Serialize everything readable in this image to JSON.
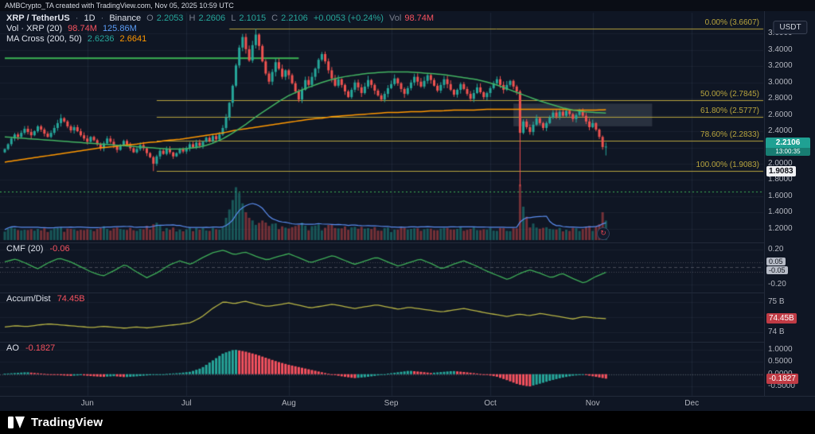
{
  "header": {
    "watermark": "AMBCrypto_TA created with TradingView.com, Nov 05, 2025 10:59 UTC"
  },
  "legend": {
    "symbol": "XRP / TetherUS",
    "sep": "·",
    "timeframe": "1D",
    "exchange": "Binance",
    "ohlc": {
      "o_label": "O",
      "o": "2.2053",
      "h_label": "H",
      "h": "2.2606",
      "l_label": "L",
      "l": "2.1015",
      "c_label": "C",
      "c": "2.2106",
      "change": "+0.0053 (+0.24%)",
      "vol_label": "Vol",
      "vol": "98.74M"
    },
    "volume_row": {
      "title": "Vol · XRP (20)",
      "v1": "98.74M",
      "v2": "125.86M"
    },
    "ma_row": {
      "title": "MA Cross (200, 50)",
      "v1": "2.6236",
      "v2": "2.6641"
    }
  },
  "panes": {
    "cmf": {
      "title": "CMF (20)",
      "value": "-0.06"
    },
    "ad": {
      "title": "Accum/Dist",
      "value": "74.45B"
    },
    "ao": {
      "title": "AO",
      "value": "-0.1827"
    }
  },
  "axis": {
    "currency_button": "USDT",
    "price_badge": {
      "price": "2.2106",
      "countdown": "13:00:35"
    },
    "fib_badge": "1.9083",
    "cmf_badges": {
      "upper": {
        "label": "0.05"
      },
      "lower": {
        "label": "-0.05"
      }
    },
    "ad_badge": "74.45B",
    "ao_badge": "-0.1827",
    "main_ticks": [
      "3.6000",
      "3.4000",
      "3.2000",
      "3.0000",
      "2.8000",
      "2.6000",
      "2.4000",
      "2.2000",
      "2.0000",
      "1.8000",
      "1.6000",
      "1.4000",
      "1.2000"
    ],
    "cmf_ticks": [
      {
        "label": "0.20",
        "value": 0.2
      },
      {
        "label": "-0.20",
        "value": -0.2
      }
    ],
    "ad_ticks": [
      {
        "label": "75 B",
        "value": 75
      },
      {
        "label": "74.5 B",
        "value": 74.5
      },
      {
        "label": "74 B",
        "value": 74
      }
    ],
    "ao_ticks": [
      {
        "label": "1.0000",
        "value": 1
      },
      {
        "label": "0.5000",
        "value": 0.5
      },
      {
        "label": "0.0000",
        "value": 0
      },
      {
        "label": "-0.5000",
        "value": -0.5
      }
    ]
  },
  "footer": {
    "brand": "TradingView"
  },
  "colors": {
    "up": "#26a69a",
    "down": "#ef5350",
    "vol_up": "rgba(38,166,154,0.45)",
    "vol_down": "rgba(239,83,80,0.45)",
    "vol_ma": "#5b8def",
    "ma200": "#ff9800",
    "ma50": "#43b462",
    "cmf": "#3fae58",
    "ad": "#b8b545",
    "ao_up": "#26a69a",
    "ao_down": "#f7525f",
    "fib": "#b9a53e",
    "hline": "#3cb454"
  },
  "chart_data": {
    "type": "candlestick",
    "title": "XRP / TetherUS · 1D · Binance",
    "ylabel": "Price (USDT)",
    "ylim": [
      1.05,
      3.82
    ],
    "first_open": 2.14,
    "closes": [
      2.18,
      2.24,
      2.31,
      2.36,
      2.33,
      2.38,
      2.43,
      2.39,
      2.35,
      2.4,
      2.46,
      2.42,
      2.37,
      2.33,
      2.38,
      2.44,
      2.5,
      2.56,
      2.52,
      2.46,
      2.41,
      2.45,
      2.4,
      2.35,
      2.31,
      2.27,
      2.33,
      2.29,
      2.24,
      2.19,
      2.25,
      2.31,
      2.27,
      2.22,
      2.17,
      2.23,
      2.28,
      2.24,
      2.19,
      2.14,
      2.18,
      2.23,
      2.19,
      2.13,
      2.08,
      2.0,
      2.09,
      2.16,
      2.12,
      2.18,
      2.14,
      2.09,
      2.13,
      2.18,
      2.15,
      2.19,
      2.24,
      2.2,
      2.26,
      2.22,
      2.27,
      2.32,
      2.28,
      2.34,
      2.3,
      2.36,
      2.44,
      2.57,
      2.75,
      2.96,
      3.21,
      3.43,
      3.56,
      3.41,
      3.27,
      3.46,
      3.59,
      3.45,
      3.26,
      3.11,
      3.01,
      3.13,
      3.25,
      3.17,
      3.07,
      3.15,
      3.09,
      2.99,
      2.89,
      2.79,
      2.91,
      3.03,
      2.97,
      3.07,
      3.17,
      3.28,
      3.35,
      3.26,
      3.15,
      3.05,
      2.96,
      3.04,
      2.97,
      2.89,
      2.82,
      2.91,
      3.0,
      2.94,
      2.87,
      2.95,
      3.03,
      2.97,
      2.9,
      2.84,
      2.79,
      2.86,
      2.93,
      2.98,
      3.05,
      2.99,
      2.92,
      2.86,
      2.93,
      3.0,
      3.07,
      3.01,
      2.95,
      3.02,
      3.09,
      3.03,
      2.96,
      2.9,
      2.97,
      3.04,
      2.98,
      2.91,
      2.85,
      2.91,
      2.98,
      2.92,
      2.86,
      2.8,
      2.87,
      2.94,
      2.88,
      2.82,
      2.87,
      2.93,
      2.99,
      3.04,
      2.97,
      2.91,
      2.97,
      3.02,
      2.95,
      2.89,
      2.38,
      2.52,
      2.45,
      2.39,
      2.48,
      2.56,
      2.5,
      2.44,
      2.5,
      2.57,
      2.63,
      2.58,
      2.64,
      2.59,
      2.65,
      2.61,
      2.55,
      2.6,
      2.65,
      2.59,
      2.52,
      2.45,
      2.5,
      2.42,
      2.33,
      2.2053,
      2.2106
    ],
    "overrides": {
      "17": {
        "h": 2.61
      },
      "45": {
        "l": 1.9083
      },
      "76": {
        "h": 3.6607
      },
      "156": {
        "h": 2.91,
        "l": 1.72
      },
      "182": {
        "h": 2.2606,
        "l": 2.1015
      }
    },
    "volume_overrides": {
      "67": 0.4,
      "68": 0.55,
      "69": 0.72,
      "70": 0.95,
      "71": 0.85,
      "72": 0.66,
      "73": 0.5,
      "74": 0.4,
      "156": 1.0,
      "157": 0.6,
      "158": 0.42,
      "181": 0.5,
      "182": 0.35
    },
    "last_bar": {
      "open": 2.2053,
      "high": 2.2606,
      "low": 2.1015,
      "close": 2.2106,
      "change": "+0.0053",
      "change_pct": "+0.24%",
      "volume": "98.74M",
      "volume_ma20": "125.86M"
    },
    "fib": [
      {
        "label": "0.00% (3.6607)",
        "price": 3.6607,
        "start_idx": 68
      },
      {
        "label": "50.00% (2.7845)",
        "price": 2.7845,
        "start_idx": 46
      },
      {
        "label": "61.80% (2.5777)",
        "price": 2.5777,
        "start_idx": 46
      },
      {
        "label": "78.60% (2.2833)",
        "price": 2.2833,
        "start_idx": 46
      },
      {
        "label": "100.00% (1.9083)",
        "price": 1.9083,
        "start_idx": 46
      }
    ],
    "drawings": {
      "hline_segment": {
        "price": 3.3,
        "from_idx": 0,
        "to_idx": 89
      },
      "dotted_line": {
        "price": 1.66
      },
      "highlight_box": {
        "from_idx": 154,
        "to_idx": 196,
        "price_top": 2.74,
        "price_bottom": 2.46
      }
    },
    "ma200": [
      2.02,
      2.04,
      2.06,
      2.08,
      2.1,
      2.12,
      2.14,
      2.16,
      2.18,
      2.2,
      2.21,
      2.23,
      2.24,
      2.26,
      2.27,
      2.29,
      2.3,
      2.32,
      2.34,
      2.36,
      2.38,
      2.41,
      2.43,
      2.45,
      2.47,
      2.49,
      2.51,
      2.53,
      2.55,
      2.56,
      2.58,
      2.59,
      2.6,
      2.61,
      2.62,
      2.63,
      2.63,
      2.64,
      2.64,
      2.65,
      2.65,
      2.66,
      2.66,
      2.66,
      2.67,
      2.67,
      2.67,
      2.67,
      2.67,
      2.67,
      2.67,
      2.67,
      2.66,
      2.66,
      2.66,
      2.6641
    ],
    "ma50": [
      2.33,
      2.32,
      2.31,
      2.3,
      2.29,
      2.28,
      2.27,
      2.26,
      2.25,
      2.24,
      2.23,
      2.22,
      2.21,
      2.2,
      2.19,
      2.18,
      2.18,
      2.19,
      2.21,
      2.25,
      2.31,
      2.39,
      2.48,
      2.58,
      2.67,
      2.76,
      2.84,
      2.9,
      2.95,
      3.0,
      3.04,
      3.07,
      3.09,
      3.11,
      3.12,
      3.13,
      3.13,
      3.13,
      3.12,
      3.11,
      3.1,
      3.08,
      3.06,
      3.04,
      3.01,
      2.97,
      2.92,
      2.87,
      2.82,
      2.77,
      2.73,
      2.69,
      2.66,
      2.64,
      2.63,
      2.6236
    ],
    "cmf": {
      "range": [
        -0.25,
        0.25
      ],
      "levels": [
        0.05,
        -0.05
      ],
      "values": [
        0.06,
        0.09,
        0.04,
        -0.02,
        0.05,
        0.1,
        0.06,
        0.0,
        -0.06,
        -0.1,
        -0.04,
        0.03,
        -0.05,
        -0.12,
        -0.06,
        0.02,
        0.07,
        0.03,
        0.1,
        0.16,
        0.19,
        0.14,
        0.17,
        0.12,
        0.08,
        0.12,
        0.15,
        0.1,
        0.05,
        0.09,
        0.13,
        0.08,
        0.03,
        0.07,
        0.11,
        0.06,
        0.01,
        0.05,
        0.09,
        0.04,
        -0.02,
        0.03,
        0.07,
        0.02,
        -0.04,
        -0.09,
        -0.14,
        -0.08,
        -0.03,
        -0.07,
        -0.12,
        -0.07,
        -0.13,
        -0.18,
        -0.11,
        -0.06
      ]
    },
    "ad": {
      "range": [
        73.8,
        75.25
      ],
      "values": [
        74.18,
        74.22,
        74.19,
        74.24,
        74.28,
        74.25,
        74.22,
        74.19,
        74.16,
        74.2,
        74.17,
        74.14,
        74.18,
        74.15,
        74.19,
        74.23,
        74.27,
        74.32,
        74.5,
        74.78,
        75.0,
        74.94,
        75.02,
        74.92,
        74.85,
        74.9,
        74.96,
        74.88,
        74.8,
        74.86,
        74.92,
        74.85,
        74.78,
        74.84,
        74.9,
        74.83,
        74.76,
        74.82,
        74.77,
        74.72,
        74.67,
        74.73,
        74.78,
        74.71,
        74.64,
        74.58,
        74.52,
        74.6,
        74.55,
        74.62,
        74.56,
        74.5,
        74.44,
        74.52,
        74.47,
        74.45
      ]
    },
    "ao": {
      "range": [
        -0.75,
        1.25
      ],
      "values": [
        0.02,
        0.05,
        0.08,
        0.04,
        0.0,
        -0.04,
        -0.07,
        -0.04,
        -0.08,
        -0.11,
        -0.08,
        -0.12,
        -0.09,
        -0.05,
        -0.02,
        0.02,
        0.05,
        0.1,
        0.25,
        0.55,
        0.85,
        1.0,
        0.92,
        0.8,
        0.65,
        0.5,
        0.38,
        0.28,
        0.18,
        0.08,
        -0.02,
        -0.1,
        -0.16,
        -0.12,
        -0.06,
        0.02,
        0.08,
        0.14,
        0.1,
        0.05,
        0.09,
        0.13,
        0.09,
        0.04,
        -0.02,
        -0.1,
        -0.25,
        -0.42,
        -0.5,
        -0.38,
        -0.25,
        -0.14,
        -0.06,
        -0.02,
        -0.1,
        -0.18
      ]
    },
    "months": [
      {
        "label": "Jun",
        "idx": 25
      },
      {
        "label": "Jul",
        "idx": 55
      },
      {
        "label": "Aug",
        "idx": 86
      },
      {
        "label": "Sep",
        "idx": 117
      },
      {
        "label": "Oct",
        "idx": 147
      },
      {
        "label": "Nov",
        "idx": 178
      },
      {
        "label": "Dec",
        "idx": 208
      }
    ]
  }
}
